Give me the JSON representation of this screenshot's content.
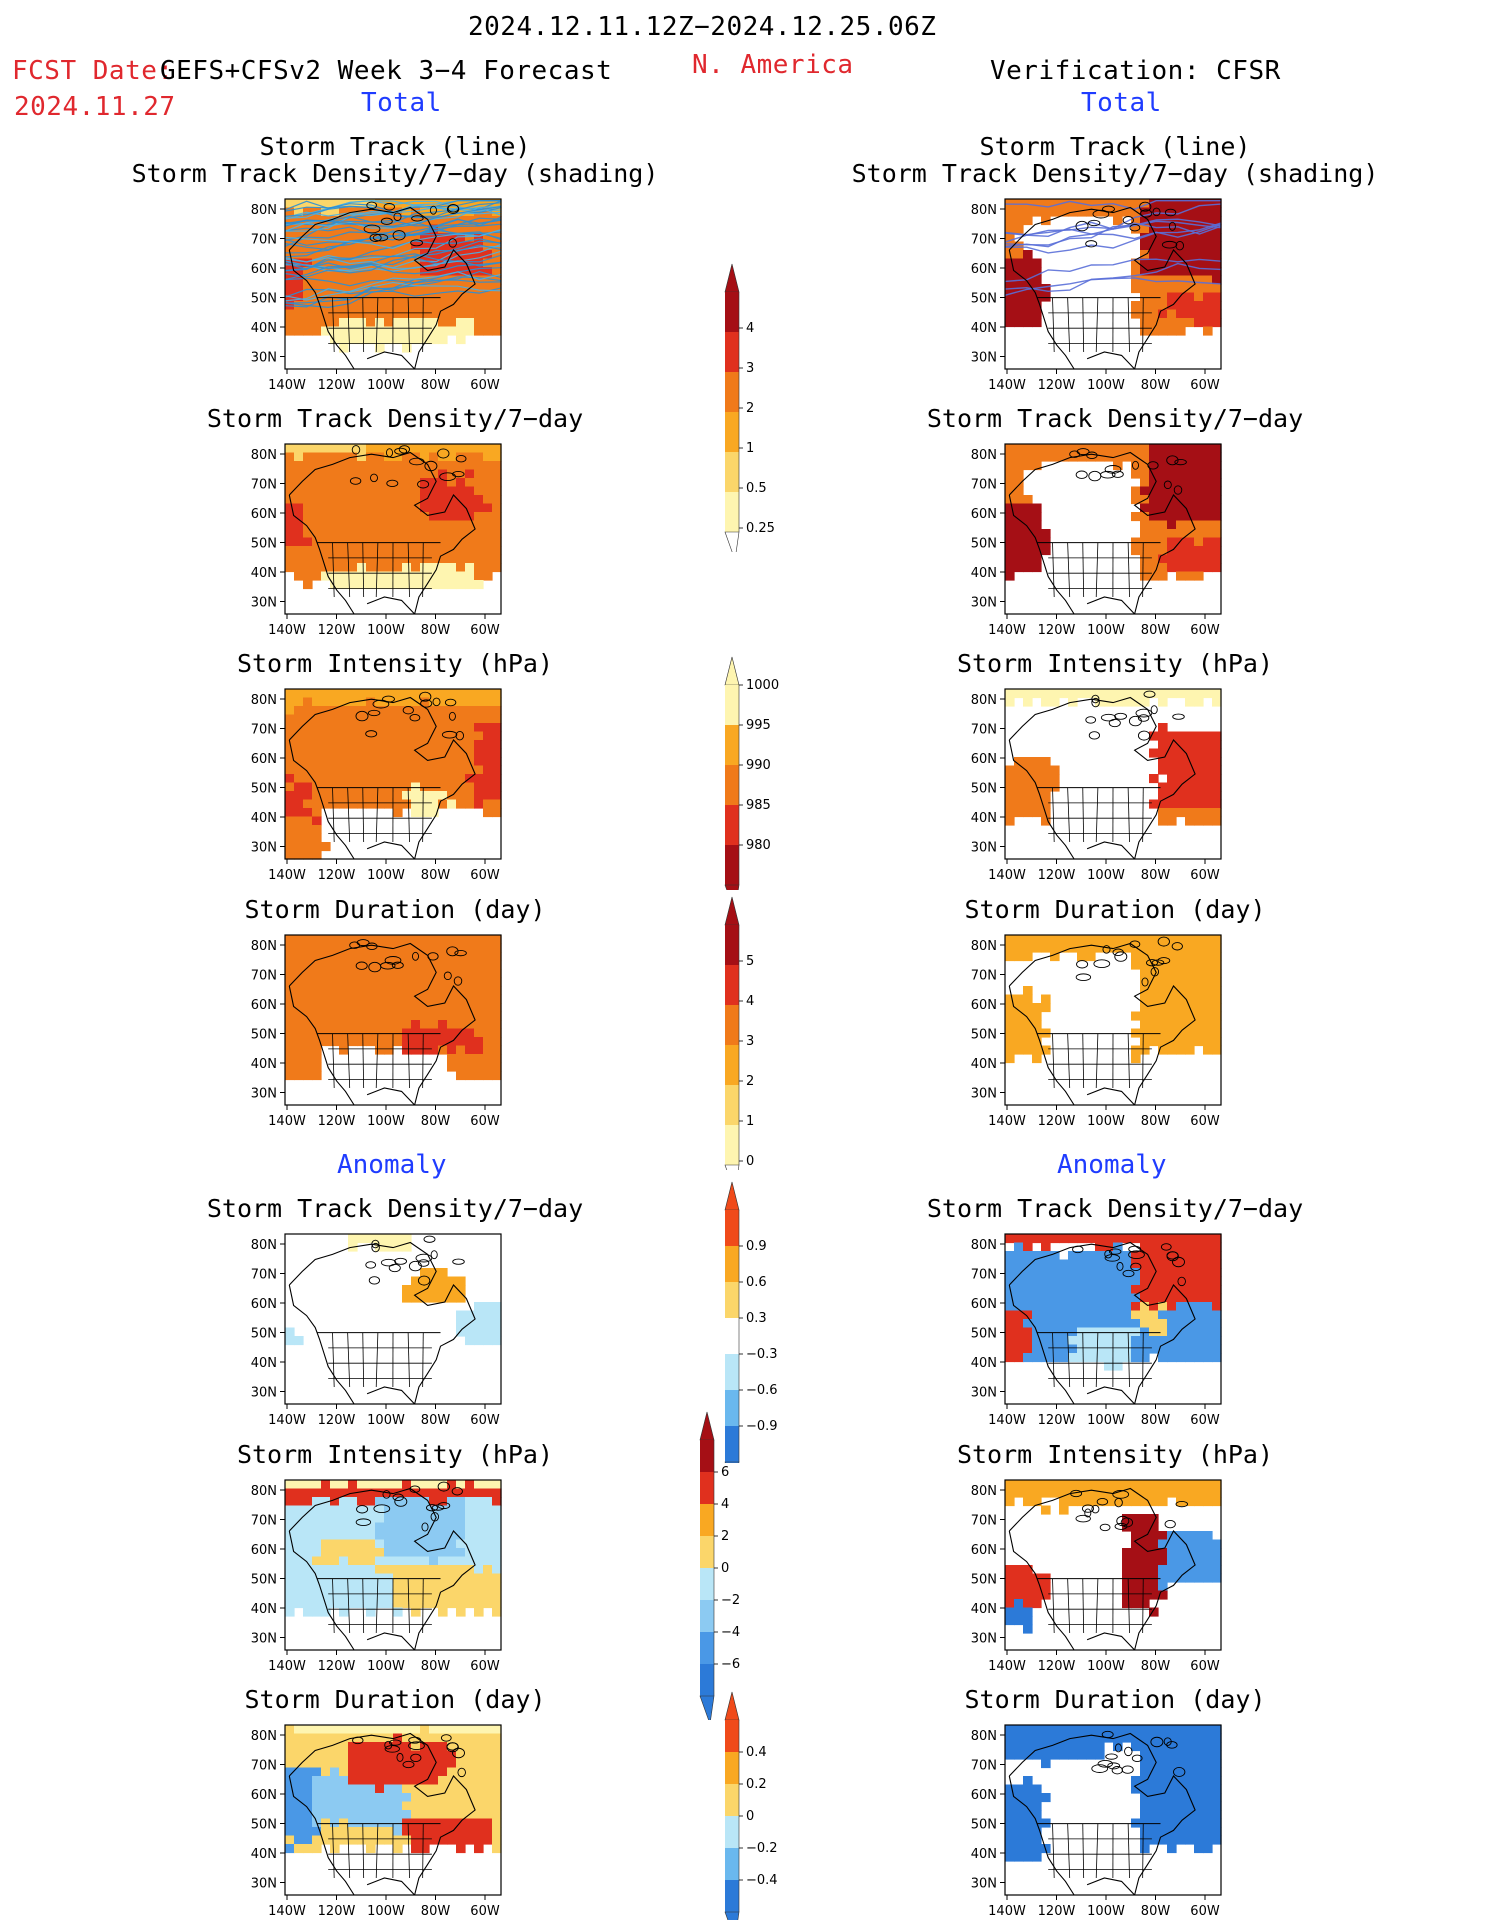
{
  "header": {
    "date_range": "2024.12.11.12Z−2024.12.25.06Z",
    "fcst_label": "FCST Date:",
    "fcst_date": "2024.11.27",
    "model": "GEFS+CFSv2 Week 3−4 Forecast",
    "region": "N. America",
    "verification": "Verification: CFSR",
    "total_left": "Total",
    "total_right": "Total",
    "anomaly_left": "Anomaly",
    "anomaly_right": "Anomaly"
  },
  "axes": {
    "lat_labels": [
      "80N",
      "70N",
      "60N",
      "50N",
      "40N",
      "30N"
    ],
    "lon_labels": [
      "140W",
      "120W",
      "100W",
      "80W",
      "60W"
    ]
  },
  "panel_titles": {
    "track_line": "Storm Track (line)",
    "track_shading": "Storm Track Density/7−day (shading)",
    "density": "Storm Track Density/7−day",
    "intensity": "Storm Intensity (hPa)",
    "duration": "Storm Duration (day)"
  },
  "colorbars": {
    "density": {
      "labels": [
        "4",
        "3",
        "2",
        "1",
        "0.5",
        "0.25"
      ],
      "colors": [
        "#a50f15",
        "#e0301e",
        "#f07a1a",
        "#f9a822",
        "#fbd66a",
        "#fef5b0"
      ]
    },
    "intensity": {
      "labels": [
        "1000",
        "995",
        "990",
        "985",
        "980"
      ],
      "colors": [
        "#fef5b0",
        "#f9a822",
        "#f07a1a",
        "#e0301e",
        "#a50f15"
      ]
    },
    "duration": {
      "labels": [
        "5",
        "4",
        "3",
        "2",
        "1",
        "0"
      ],
      "colors": [
        "#a50f15",
        "#e0301e",
        "#f07a1a",
        "#f9a822",
        "#fbd66a",
        "#fef5b0"
      ]
    },
    "anom_density": {
      "labels": [
        "0.9",
        "0.6",
        "0.3",
        "−0.3",
        "−0.6",
        "−0.9"
      ],
      "colors": [
        "#f04a1a",
        "#f9a822",
        "#fbd66a",
        "#ffffff",
        "#b9e6f7",
        "#6ab8ee",
        "#2c7ad8"
      ]
    },
    "anom_intensity": {
      "labels": [
        "6",
        "4",
        "2",
        "0",
        "−2",
        "−4",
        "−6"
      ],
      "colors": [
        "#a50f15",
        "#e0301e",
        "#f9a822",
        "#fbd66a",
        "#b9e6f7",
        "#8ccaf2",
        "#4a98e6",
        "#2c7ad8"
      ]
    },
    "anom_duration": {
      "labels": [
        "0.4",
        "0.2",
        "0",
        "−0.2",
        "−0.4"
      ],
      "colors": [
        "#f04a1a",
        "#f9a822",
        "#fbd66a",
        "#b9e6f7",
        "#6ab8ee",
        "#2c7ad8"
      ]
    }
  }
}
